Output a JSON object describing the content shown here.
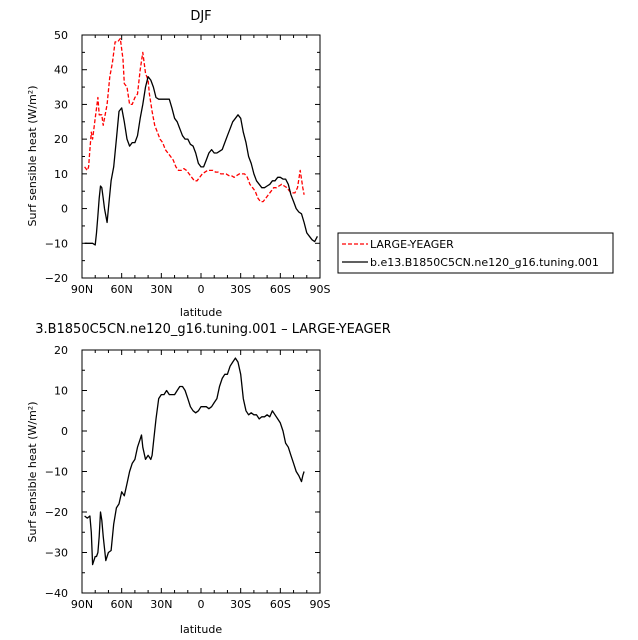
{
  "chart_data": [
    {
      "type": "line",
      "title": "DJF",
      "xlabel": "latitude",
      "ylabel": "Surf sensible heat (W/m²)",
      "xlim": [
        90,
        -90
      ],
      "ylim": [
        -20,
        50
      ],
      "x_ticks": [
        90,
        60,
        30,
        0,
        -30,
        -60,
        -90
      ],
      "x_tick_labels": [
        "90N",
        "60N",
        "30N",
        "0",
        "30S",
        "60S",
        "90S"
      ],
      "y_ticks": [
        -20,
        -10,
        0,
        10,
        20,
        30,
        40,
        50
      ],
      "y_tick_labels": [
        "−20",
        "−10",
        "0",
        "10",
        "20",
        "30",
        "40",
        "50"
      ],
      "legend": "right",
      "series": [
        {
          "name": "LARGE-YEAGER",
          "color": "#ff0000",
          "dash": "dashed",
          "x": [
            88,
            86,
            85,
            84,
            83,
            82,
            80,
            78,
            77,
            75,
            74,
            73,
            71,
            69,
            67,
            65,
            63,
            61,
            59,
            58,
            56,
            54,
            52,
            50,
            48,
            46,
            44,
            42,
            40,
            39,
            37,
            35,
            33,
            31,
            29,
            27,
            25,
            23,
            21,
            19,
            17,
            15,
            13,
            11,
            9,
            7,
            5,
            3,
            1,
            -1,
            -3,
            -5,
            -7,
            -9,
            -11,
            -13,
            -15,
            -17,
            -19,
            -21,
            -23,
            -25,
            -27,
            -29,
            -31,
            -33,
            -35,
            -37,
            -39,
            -41,
            -43,
            -45,
            -47,
            -49,
            -51,
            -53,
            -55,
            -57,
            -59,
            -61,
            -63,
            -65,
            -67,
            -69,
            -71,
            -73,
            -75,
            -77,
            -78
          ],
          "values": [
            12,
            11,
            12,
            17,
            22,
            20,
            26,
            32,
            27,
            27,
            24,
            26,
            30,
            38,
            42,
            48,
            48,
            49,
            43,
            36,
            35,
            30,
            30,
            32,
            33,
            40,
            45,
            39,
            37,
            33,
            28,
            24,
            22,
            20,
            19,
            17,
            16,
            15,
            14,
            12,
            11,
            11,
            11.5,
            11,
            10,
            9,
            8,
            8,
            9,
            10,
            10.5,
            11,
            11,
            11,
            10.5,
            10.5,
            10,
            10,
            10,
            9.5,
            9.5,
            9,
            9.5,
            10,
            10,
            10,
            9,
            7,
            6,
            5,
            3,
            2,
            2,
            3,
            4,
            5,
            6,
            6,
            6.5,
            7,
            6.5,
            6,
            5,
            4.5,
            4.5,
            6,
            11,
            6,
            4
          ]
        },
        {
          "name": "b.e13.B1850C5CN.ne120_g16.tuning.001",
          "color": "#000000",
          "dash": "solid",
          "x": [
            88,
            86,
            84,
            82,
            80,
            79,
            78,
            77,
            76,
            75,
            74,
            73,
            72,
            71,
            70,
            68,
            66,
            64,
            62,
            60,
            58,
            56,
            54,
            52,
            50,
            48,
            46,
            44,
            42,
            40,
            38,
            36,
            34,
            32,
            30,
            28,
            26,
            24,
            22,
            20,
            18,
            16,
            14,
            12,
            10,
            8,
            6,
            4,
            2,
            0,
            -2,
            -4,
            -6,
            -8,
            -10,
            -12,
            -14,
            -16,
            -18,
            -20,
            -22,
            -24,
            -26,
            -28,
            -30,
            -32,
            -34,
            -36,
            -38,
            -40,
            -42,
            -44,
            -46,
            -48,
            -50,
            -52,
            -54,
            -56,
            -58,
            -60,
            -62,
            -64,
            -66,
            -68,
            -70,
            -72,
            -74,
            -76,
            -78,
            -80,
            -82,
            -84,
            -86,
            -88
          ],
          "values": [
            -10,
            -10,
            -10,
            -10,
            -10.5,
            -7,
            -2,
            3,
            6.5,
            6,
            3,
            0,
            -2,
            -4,
            0,
            8,
            12,
            20,
            28,
            29,
            25,
            20,
            18,
            19,
            19,
            21,
            26,
            30,
            35,
            38,
            37,
            35,
            32,
            31.5,
            31.5,
            31.5,
            31.5,
            31.5,
            29,
            26,
            25,
            23,
            21,
            20,
            20,
            18.5,
            18,
            16,
            13,
            12,
            12,
            14,
            16,
            17,
            16,
            16,
            16.5,
            17,
            19,
            21,
            23,
            25,
            26,
            27,
            26,
            22,
            19,
            15,
            13,
            10,
            8,
            7,
            6,
            6,
            6.5,
            7,
            8,
            8,
            9,
            9,
            8.5,
            8.5,
            7,
            4,
            2,
            0,
            -1,
            -1.5,
            -4,
            -7,
            -8,
            -9,
            -9.5,
            -8
          ]
        }
      ]
    },
    {
      "type": "line",
      "title": "3.B1850C5CN.ne120_g16.tuning.001 – LARGE-YEAGER",
      "xlabel": "latitude",
      "ylabel": "Surf sensible heat (W/m²)",
      "xlim": [
        90,
        -90
      ],
      "ylim": [
        -40,
        20
      ],
      "x_ticks": [
        90,
        60,
        30,
        0,
        -30,
        -60,
        -90
      ],
      "x_tick_labels": [
        "90N",
        "60N",
        "30N",
        "0",
        "30S",
        "60S",
        "90S"
      ],
      "y_ticks": [
        -40,
        -30,
        -20,
        -10,
        0,
        10,
        20
      ],
      "y_tick_labels": [
        "−40",
        "−30",
        "−20",
        "−10",
        "0",
        "10",
        "20"
      ],
      "series": [
        {
          "color": "#000000",
          "dash": "solid",
          "x": [
            88,
            86,
            84,
            83,
            82,
            81,
            80,
            79,
            78,
            77,
            76,
            75,
            74,
            72,
            71,
            70,
            68,
            66,
            64,
            62,
            60,
            58,
            56,
            54,
            52,
            50,
            48,
            46,
            45,
            44,
            42,
            40,
            38,
            37,
            36,
            34,
            32,
            30,
            28,
            26,
            24,
            22,
            20,
            18,
            16,
            14,
            12,
            10,
            8,
            6,
            4,
            2,
            0,
            -2,
            -4,
            -6,
            -8,
            -10,
            -12,
            -14,
            -16,
            -18,
            -20,
            -22,
            -24,
            -26,
            -28,
            -30,
            -32,
            -34,
            -36,
            -38,
            -40,
            -42,
            -44,
            -46,
            -48,
            -50,
            -52,
            -54,
            -56,
            -58,
            -60,
            -62,
            -64,
            -66,
            -68,
            -70,
            -72,
            -74,
            -76,
            -77,
            -78
          ],
          "values": [
            -21,
            -21.5,
            -21,
            -25,
            -33,
            -32,
            -31,
            -31,
            -30,
            -26,
            -20,
            -22,
            -26,
            -32,
            -31,
            -30,
            -29.5,
            -23,
            -19,
            -18,
            -15,
            -16,
            -13,
            -10,
            -8,
            -7,
            -4,
            -2,
            -1,
            -4,
            -7,
            -6,
            -7,
            -6,
            -3,
            3,
            8,
            9,
            9,
            10,
            9,
            9,
            9,
            10,
            11,
            11,
            10,
            8,
            6,
            5,
            4.5,
            5,
            6,
            6,
            6,
            5.5,
            6,
            7,
            8,
            11,
            13,
            14,
            14,
            16,
            17,
            18,
            17,
            14,
            8,
            5,
            4,
            4.5,
            4,
            4,
            3,
            3.5,
            3.5,
            4,
            3.5,
            5,
            4,
            3,
            2,
            0,
            -3,
            -4,
            -6,
            -8,
            -10,
            -11,
            -12.5,
            -11,
            -10
          ]
        }
      ]
    }
  ]
}
